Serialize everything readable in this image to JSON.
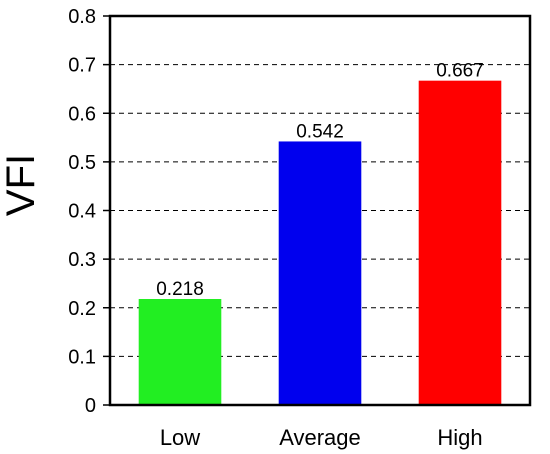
{
  "chart_data": {
    "type": "bar",
    "title": "",
    "xlabel": "",
    "ylabel": "VFI",
    "categories": [
      "Low",
      "Average",
      "High"
    ],
    "values": [
      0.218,
      0.542,
      0.667
    ],
    "data_labels": [
      "0.218",
      "0.542",
      "0.667"
    ],
    "bar_colors": [
      "#22ee22",
      "#0000ee",
      "#ff0000"
    ],
    "ylim": [
      0,
      0.8
    ],
    "yticks": [
      0,
      0.1,
      0.2,
      0.3,
      0.4,
      0.5,
      0.6,
      0.7,
      0.8
    ],
    "ytick_labels": [
      "0",
      "0.1",
      "0.2",
      "0.3",
      "0.4",
      "0.5",
      "0.6",
      "0.7",
      "0.8"
    ],
    "grid": "horizontal dashed",
    "legend": "none"
  }
}
